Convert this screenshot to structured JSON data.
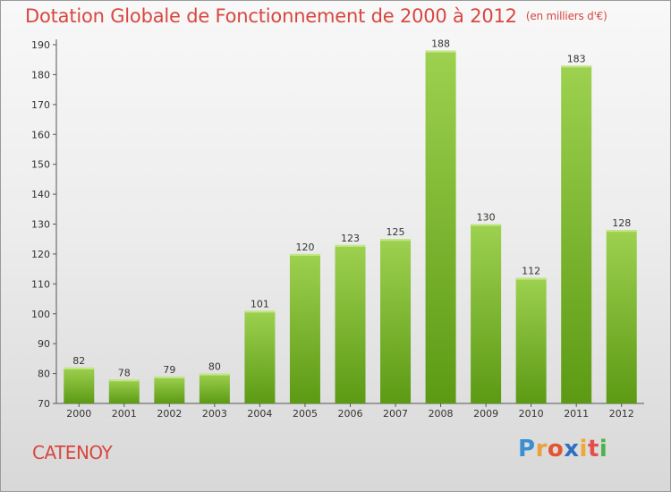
{
  "header": {
    "title": "Dotation Globale de Fonctionnement de 2000 à 2012",
    "unit": "(en milliers d'€)"
  },
  "footer": {
    "town": "CATENOY",
    "brand_letters": [
      "P",
      "r",
      "o",
      "x",
      "i",
      "t",
      "i"
    ],
    "brand_colors": [
      "#3a8fd0",
      "#e8a23a",
      "#e4552f",
      "#2f6fc0",
      "#f0a830",
      "#e2504a",
      "#4bb34b"
    ]
  },
  "colors": {
    "bar_top": "#9dd14f",
    "bar_bottom": "#5c9a14",
    "title": "#d8473f"
  },
  "chart_data": {
    "type": "bar",
    "title": "Dotation Globale de Fonctionnement de 2000 à 2012",
    "subtitle": "(en milliers d'€)",
    "categories": [
      "2000",
      "2001",
      "2002",
      "2003",
      "2004",
      "2005",
      "2006",
      "2007",
      "2008",
      "2009",
      "2010",
      "2011",
      "2012"
    ],
    "values": [
      82,
      78,
      79,
      80,
      101,
      120,
      123,
      125,
      188,
      130,
      112,
      183,
      128
    ],
    "xlabel": "",
    "ylabel": "",
    "ylim": [
      70,
      190
    ],
    "yticks": [
      70,
      80,
      90,
      100,
      110,
      120,
      130,
      140,
      150,
      160,
      170,
      180,
      190
    ],
    "grid": false,
    "legend": "none"
  }
}
